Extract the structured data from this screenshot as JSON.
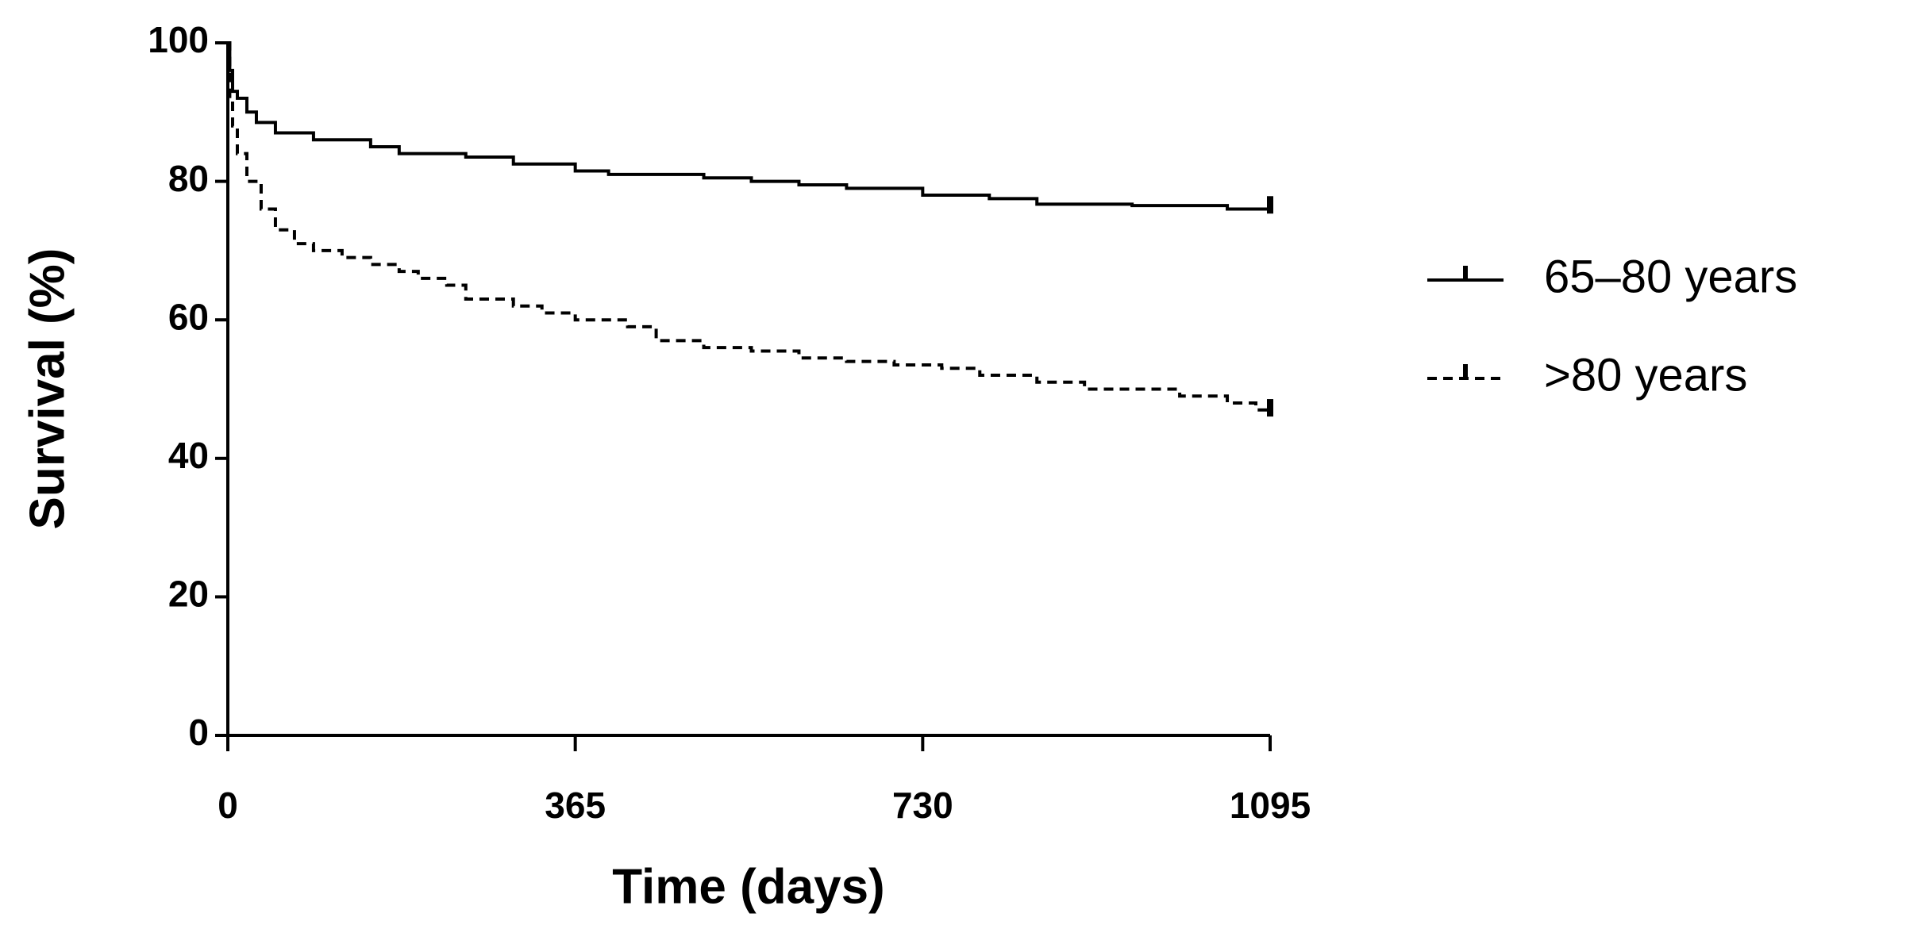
{
  "chart_data": {
    "type": "line",
    "x_label": "Time (days)",
    "y_label": "Survival (%)",
    "xlim": [
      0,
      1095
    ],
    "xticks": [
      0,
      365,
      730,
      1095
    ],
    "ylim": [
      0,
      100
    ],
    "yticks": [
      0,
      20,
      40,
      60,
      80,
      100
    ],
    "step": true,
    "series": [
      {
        "name": "65–80 years",
        "color": "#000000",
        "line_style": "solid",
        "x": [
          0,
          2,
          5,
          10,
          20,
          30,
          50,
          90,
          150,
          180,
          250,
          300,
          365,
          400,
          500,
          550,
          600,
          650,
          730,
          800,
          850,
          950,
          1050,
          1095
        ],
        "values": [
          100,
          96,
          93,
          92,
          90,
          88.5,
          87,
          86,
          85,
          84,
          83.5,
          82.5,
          81.5,
          81,
          80.5,
          80,
          79.5,
          79,
          78,
          77.5,
          76.7,
          76.5,
          76,
          75.8
        ]
      },
      {
        "name": ">80 years",
        "color": "#000000",
        "line_style": "dashed",
        "x": [
          0,
          2,
          5,
          10,
          20,
          35,
          50,
          70,
          90,
          120,
          150,
          180,
          200,
          230,
          250,
          300,
          330,
          365,
          420,
          450,
          500,
          550,
          600,
          650,
          700,
          750,
          790,
          850,
          900,
          1000,
          1050,
          1080,
          1095
        ],
        "values": [
          100,
          92,
          88,
          84,
          80,
          76,
          73,
          71,
          70,
          69,
          68,
          67,
          66,
          65,
          63,
          62,
          61,
          60,
          59,
          57,
          56,
          55.5,
          54.5,
          54,
          53.5,
          53,
          52,
          51,
          50,
          49,
          48,
          47,
          46.5
        ]
      }
    ]
  }
}
